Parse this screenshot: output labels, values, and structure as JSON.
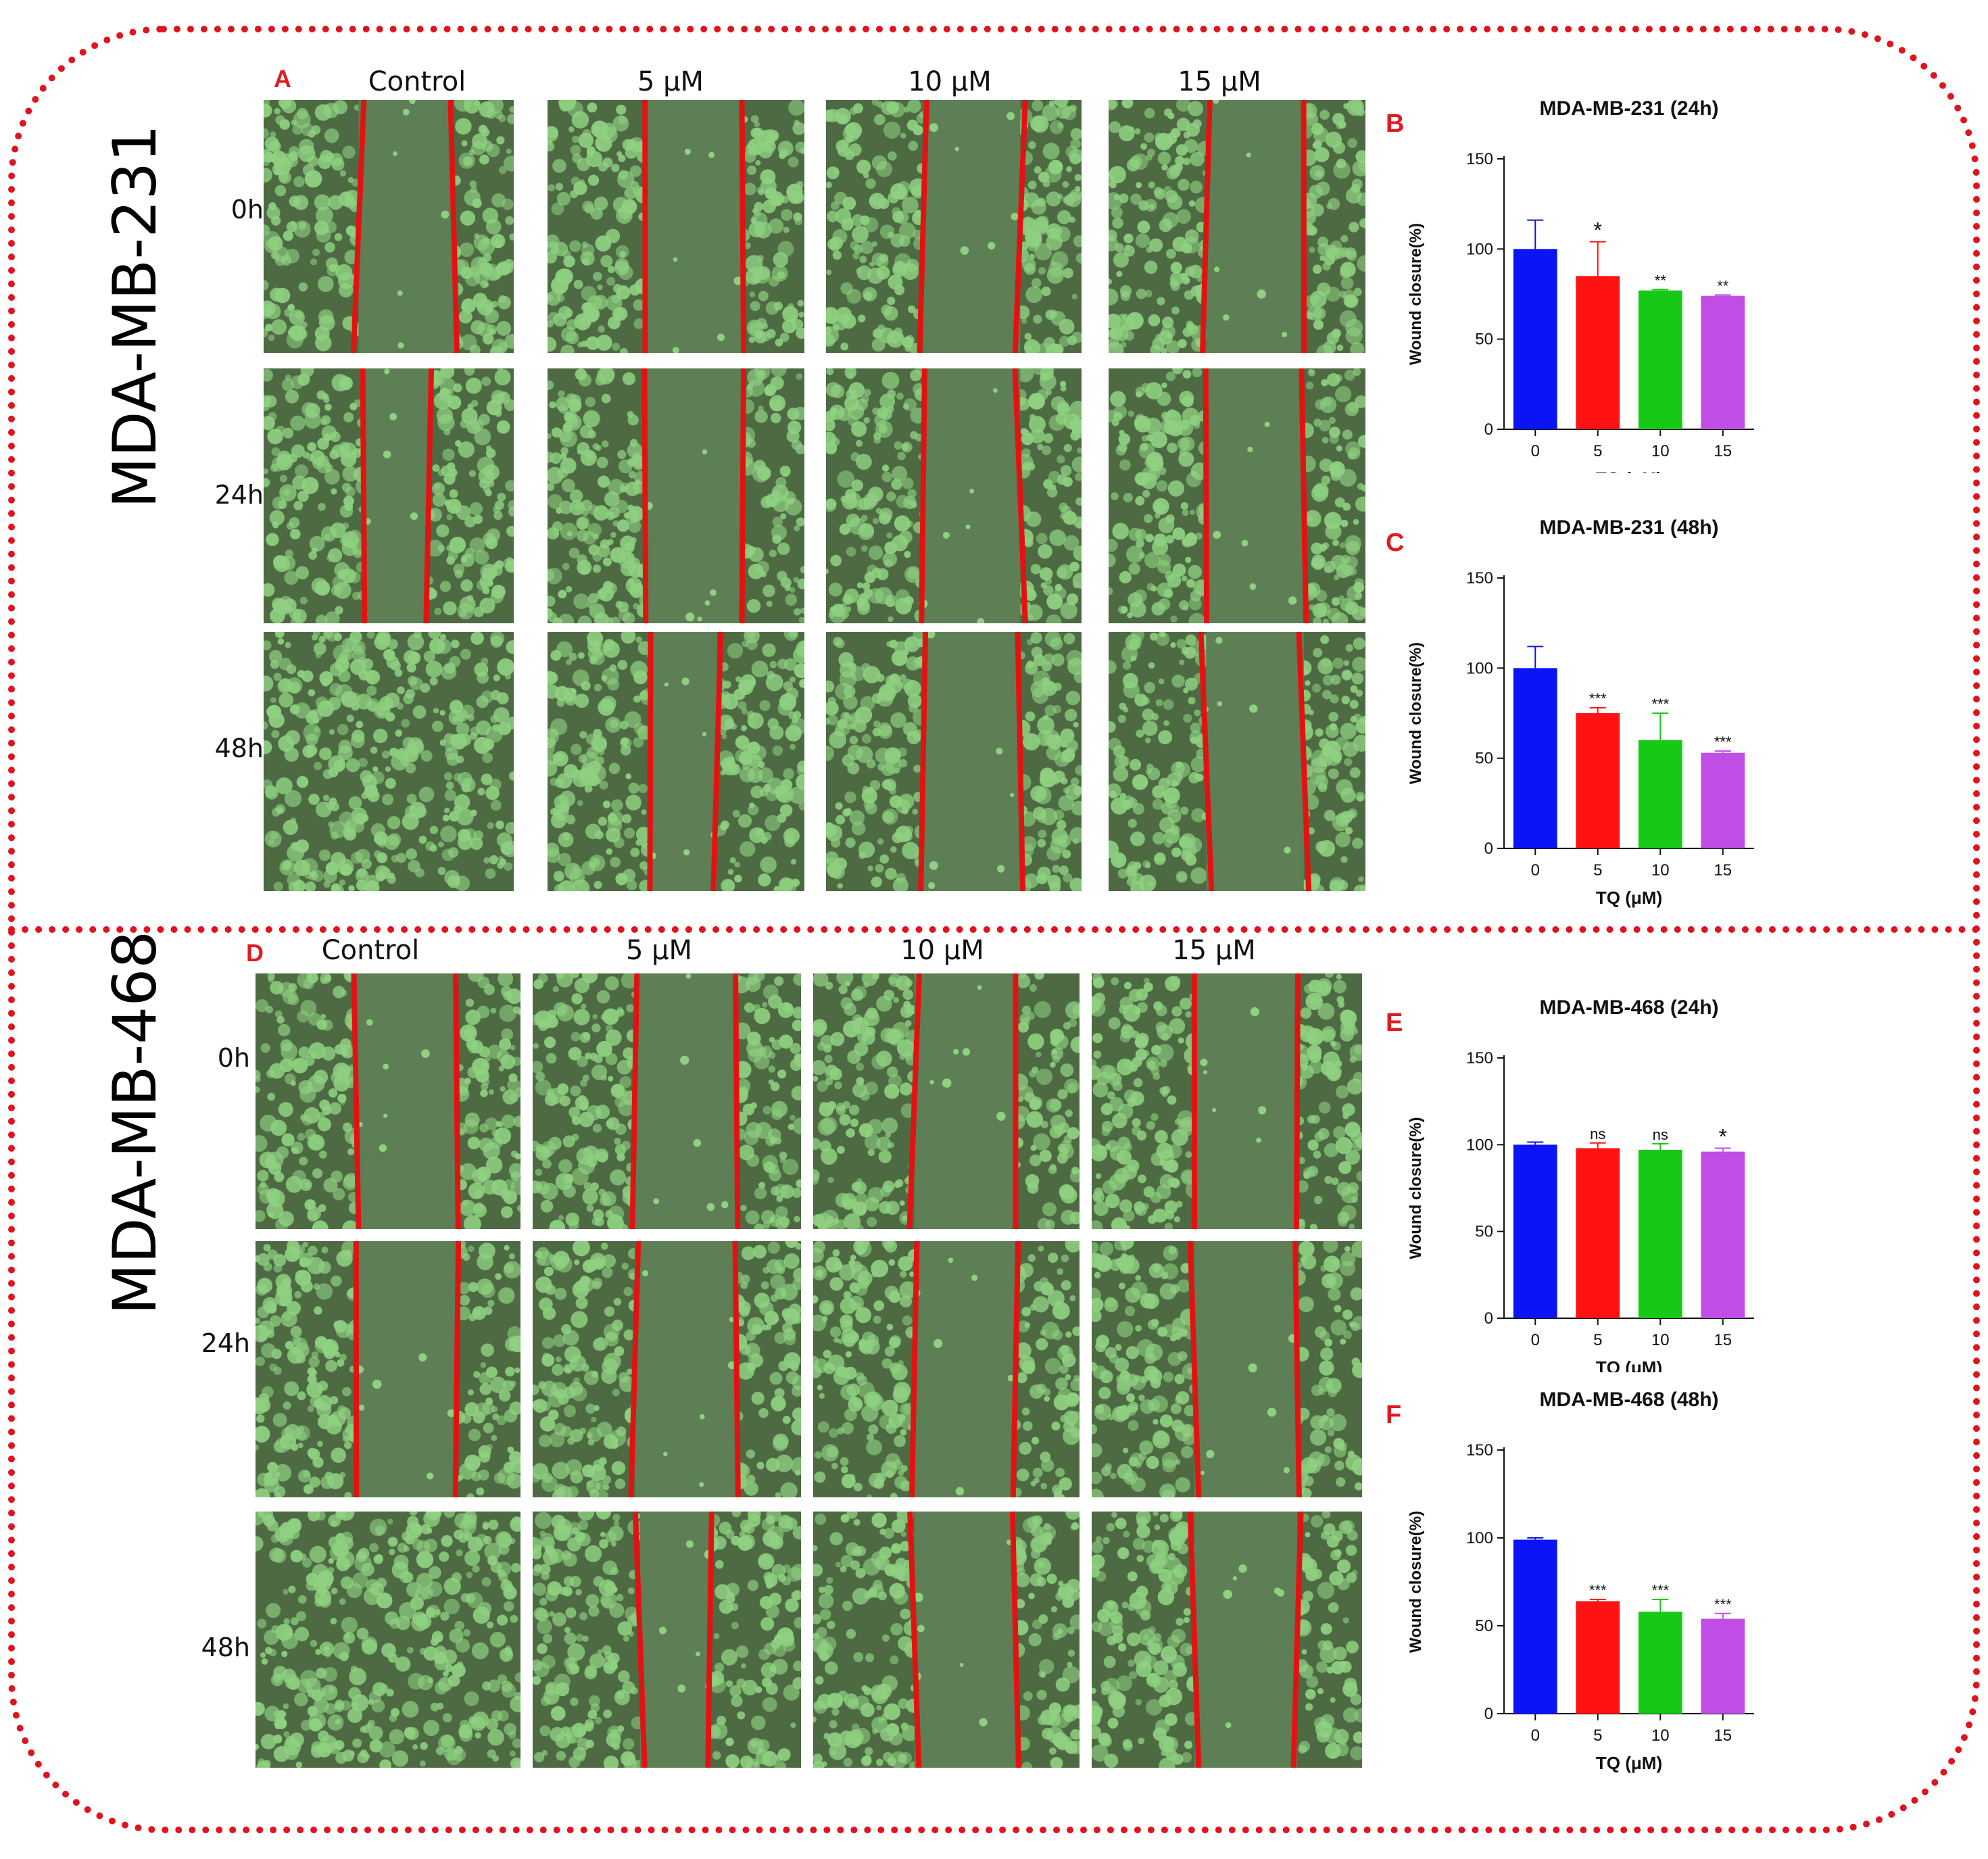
{
  "colors": {
    "frame": "#e0141e",
    "panel_letter": "#e11b22",
    "cells_light": "#8fd181",
    "cells_dark": "#4d6a43",
    "gap_fill": "#5e7f55",
    "scratch_edge": "#e31212",
    "bar_blue": "#0a14f5",
    "bar_red": "#ff1212",
    "bar_green": "#17c817",
    "bar_purple_top": "#c04ee6",
    "bar_purple_bottom": "#a31ee0"
  },
  "top_block": {
    "cell_line": "MDA-MB-231",
    "panel_letter": "A",
    "columns": [
      "Control",
      "5 μM",
      "10 μM",
      "15 μM"
    ],
    "rows": [
      "0h",
      "24h",
      "48h"
    ]
  },
  "bottom_block": {
    "cell_line": "MDA-MB-468",
    "panel_letter": "D",
    "columns": [
      "Control",
      "5 μM",
      "10 μM",
      "15 μM"
    ],
    "rows": [
      "0h",
      "24h",
      "48h"
    ]
  },
  "images_top": [
    {
      "name": "micro-231-0h-control",
      "gap": "open"
    },
    {
      "name": "micro-231-0h-5",
      "gap": "open"
    },
    {
      "name": "micro-231-0h-10",
      "gap": "open"
    },
    {
      "name": "micro-231-0h-15",
      "gap": "open"
    },
    {
      "name": "micro-231-24h-control",
      "gap": "narrowing"
    },
    {
      "name": "micro-231-24h-5",
      "gap": "open"
    },
    {
      "name": "micro-231-24h-10",
      "gap": "open"
    },
    {
      "name": "micro-231-24h-15",
      "gap": "open"
    },
    {
      "name": "micro-231-48h-control",
      "gap": "closed"
    },
    {
      "name": "micro-231-48h-5",
      "gap": "narrowing"
    },
    {
      "name": "micro-231-48h-10",
      "gap": "open"
    },
    {
      "name": "micro-231-48h-15",
      "gap": "open"
    }
  ],
  "images_bottom": [
    {
      "name": "micro-468-0h-control",
      "gap": "open"
    },
    {
      "name": "micro-468-0h-5",
      "gap": "open"
    },
    {
      "name": "micro-468-0h-10",
      "gap": "open"
    },
    {
      "name": "micro-468-0h-15",
      "gap": "open"
    },
    {
      "name": "micro-468-24h-control",
      "gap": "open"
    },
    {
      "name": "micro-468-24h-5",
      "gap": "open"
    },
    {
      "name": "micro-468-24h-10",
      "gap": "open"
    },
    {
      "name": "micro-468-24h-15",
      "gap": "open"
    },
    {
      "name": "micro-468-48h-control",
      "gap": "closed"
    },
    {
      "name": "micro-468-48h-5",
      "gap": "narrowing"
    },
    {
      "name": "micro-468-48h-10",
      "gap": "open"
    },
    {
      "name": "micro-468-48h-15",
      "gap": "open"
    }
  ],
  "chart_data": [
    {
      "id": "B",
      "panel_letter": "B",
      "type": "bar",
      "title": "MDA-MB-231 (24h)",
      "xlabel": "TQ (μM)",
      "ylabel": "Wound closure(%)",
      "categories": [
        "0",
        "5",
        "10",
        "15"
      ],
      "values": [
        100,
        85,
        77,
        74
      ],
      "errors": [
        16,
        19,
        0.5,
        0.5
      ],
      "significance": [
        "",
        "*",
        "**",
        "**"
      ],
      "ylim": [
        0,
        150
      ],
      "yticks": [
        0,
        50,
        100,
        150
      ]
    },
    {
      "id": "C",
      "panel_letter": "C",
      "type": "bar",
      "title": "MDA-MB-231 (48h)",
      "xlabel": "TQ (μM)",
      "ylabel": "Wound closure(%)",
      "categories": [
        "0",
        "5",
        "10",
        "15"
      ],
      "values": [
        100,
        75,
        60,
        53
      ],
      "errors": [
        12,
        3,
        15,
        1
      ],
      "significance": [
        "",
        "***",
        "***",
        "***"
      ],
      "ylim": [
        0,
        150
      ],
      "yticks": [
        0,
        50,
        100,
        150
      ]
    },
    {
      "id": "E",
      "panel_letter": "E",
      "type": "bar",
      "title": "MDA-MB-468 (24h)",
      "xlabel": "TQ (μM)",
      "ylabel": "Wound closure(%)",
      "categories": [
        "0",
        "5",
        "10",
        "15"
      ],
      "values": [
        100,
        98,
        97,
        96
      ],
      "errors": [
        1.5,
        3,
        3.5,
        2
      ],
      "significance": [
        "",
        "ns",
        "ns",
        "*"
      ],
      "ylim": [
        0,
        150
      ],
      "yticks": [
        0,
        50,
        100,
        150
      ]
    },
    {
      "id": "F",
      "panel_letter": "F",
      "type": "bar",
      "title": "MDA-MB-468 (48h)",
      "xlabel": "TQ (μM)",
      "ylabel": "Wound closure(%)",
      "categories": [
        "0",
        "5",
        "10",
        "15"
      ],
      "values": [
        99,
        64,
        58,
        54
      ],
      "errors": [
        1,
        1,
        7,
        3
      ],
      "significance": [
        "",
        "***",
        "***",
        "***"
      ],
      "ylim": [
        0,
        150
      ],
      "yticks": [
        0,
        50,
        100,
        150
      ]
    }
  ]
}
